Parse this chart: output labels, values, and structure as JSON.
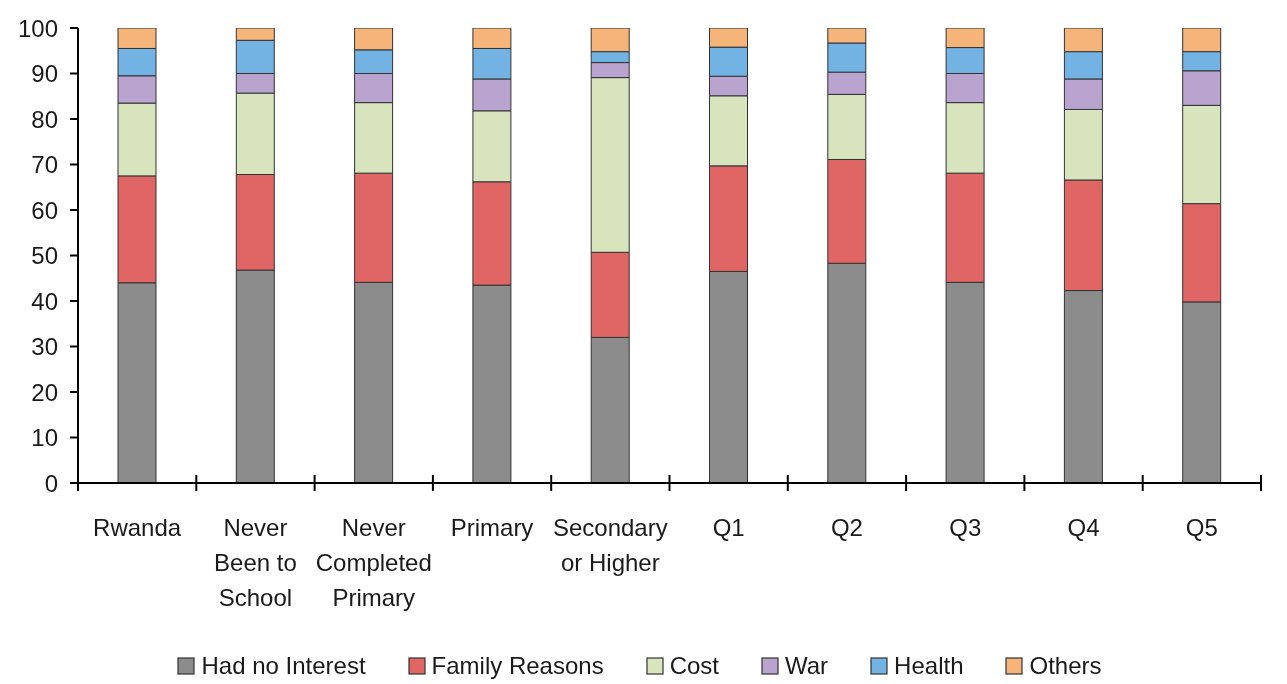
{
  "chart_data": {
    "type": "bar",
    "stacked": true,
    "categories": [
      "Rwanda",
      "Never\nBeen to\nSchool",
      "Never\nCompleted\nPrimary",
      "Primary",
      "Secondary\nor Higher",
      "Q1",
      "Q2",
      "Q3",
      "Q4",
      "Q5"
    ],
    "series": [
      {
        "name": "Had no Interest",
        "color": "#8c8c8c",
        "values": [
          44.0,
          46.8,
          44.1,
          43.5,
          32.0,
          46.5,
          48.3,
          44.1,
          42.3,
          39.8
        ]
      },
      {
        "name": "Family Reasons",
        "color": "#e06666",
        "values": [
          23.5,
          21.0,
          24.0,
          22.7,
          18.7,
          23.2,
          22.8,
          24.0,
          24.3,
          21.6
        ]
      },
      {
        "name": "Cost",
        "color": "#d7e4bd",
        "values": [
          16.0,
          17.9,
          15.5,
          15.6,
          38.4,
          15.4,
          14.3,
          15.5,
          15.5,
          21.6
        ]
      },
      {
        "name": "War",
        "color": "#b9a3cf",
        "values": [
          6.0,
          4.3,
          6.4,
          7.0,
          3.3,
          4.3,
          4.9,
          6.4,
          6.7,
          7.6
        ]
      },
      {
        "name": "Health",
        "color": "#72b3e3",
        "values": [
          6.0,
          7.3,
          5.2,
          6.7,
          2.4,
          6.4,
          6.4,
          5.7,
          6.0,
          4.2
        ]
      },
      {
        "name": "Others",
        "color": "#f5b47a",
        "values": [
          4.5,
          2.7,
          4.8,
          4.5,
          5.2,
          4.2,
          3.3,
          4.3,
          5.2,
          5.2
        ]
      }
    ],
    "ylim": [
      0,
      100
    ],
    "yticks": [
      0,
      10,
      20,
      30,
      40,
      50,
      60,
      70,
      80,
      90,
      100
    ],
    "legend": "bottom"
  }
}
